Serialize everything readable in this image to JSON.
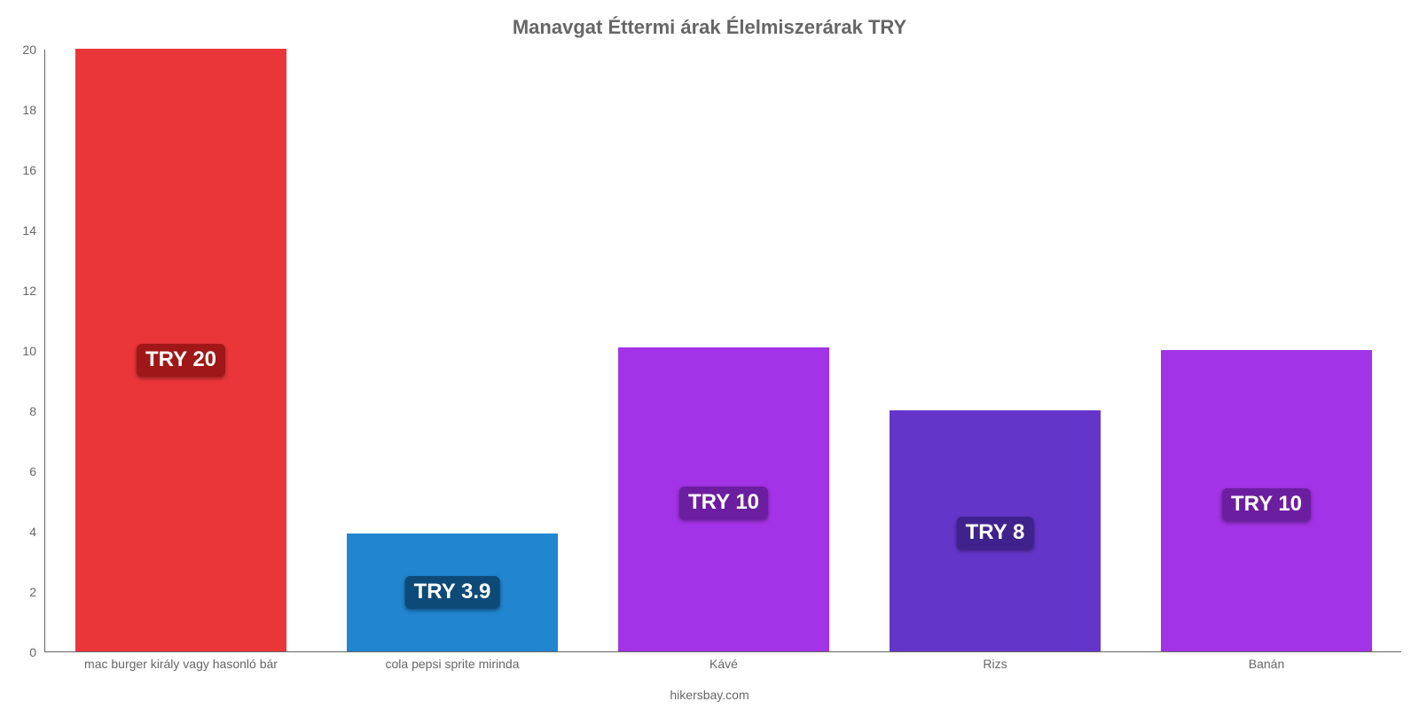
{
  "chart": {
    "type": "bar",
    "title": "Manavgat Éttermi árak Élelmiszerárak TRY",
    "title_fontsize": 22,
    "title_color": "#666666",
    "background": "#ffffff",
    "axis_color": "#666666",
    "ylim": [
      0,
      20
    ],
    "yticks": [
      0,
      2,
      4,
      6,
      8,
      10,
      12,
      14,
      16,
      18,
      20
    ],
    "tick_fontsize": 14,
    "tick_color": "#666666",
    "bar_width_ratio": 0.78,
    "value_label_fontsize": 24,
    "value_label_text_color": "#ffffff",
    "footer": "hikersbay.com",
    "footer_fontsize": 14,
    "categories": [
      "mac burger király vagy hasonló bár",
      "cola pepsi sprite mirinda",
      "Kávé",
      "Rizs",
      "Banán"
    ],
    "values": [
      20,
      3.9,
      10.1,
      8,
      10
    ],
    "value_labels": [
      "TRY 20",
      "TRY 3.9",
      "TRY 10",
      "TRY 8",
      "TRY 10"
    ],
    "bar_colors": [
      "#eb3639",
      "#2185d0",
      "#a333e6",
      "#6435c9",
      "#a333e6"
    ],
    "value_label_bg": [
      "#a01717",
      "#0d4a78",
      "#6b1fa0",
      "#3f228c",
      "#6b1fa0"
    ]
  }
}
